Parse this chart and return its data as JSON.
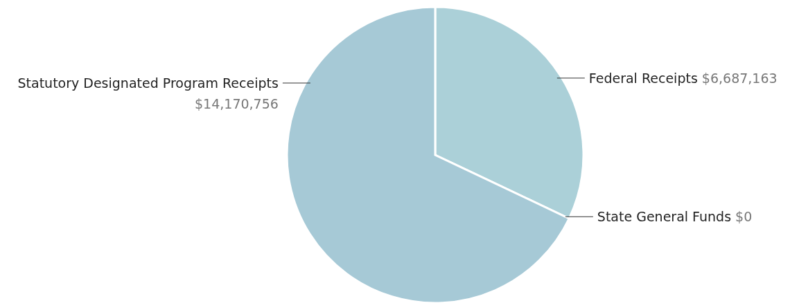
{
  "chart_data": {
    "type": "pie",
    "categories": [
      "Federal Receipts",
      "State General Funds",
      "Statutory Designated Program Receipts"
    ],
    "values": [
      6687163,
      0,
      14170756
    ],
    "value_labels": [
      "$6,687,163",
      "$0",
      "$14,170,756"
    ],
    "colors": [
      "#abd0d8",
      null,
      "#a6c9d6"
    ]
  }
}
